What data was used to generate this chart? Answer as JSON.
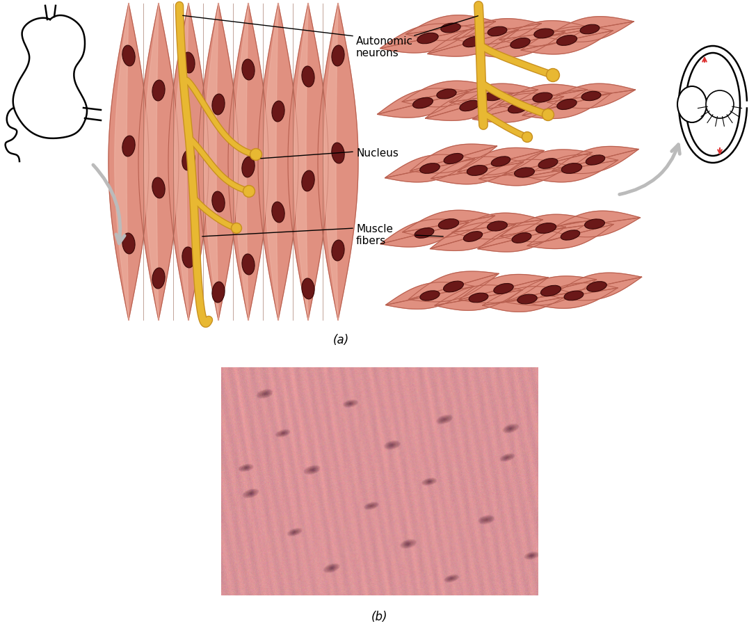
{
  "background_color": "#ffffff",
  "fig_width": 10.87,
  "fig_height": 9.23,
  "label_a": "(a)",
  "label_b": "(b)",
  "labels": {
    "autonomic_neurons": "Autonomic\nneurons",
    "nucleus": "Nucleus",
    "muscle_fibers": "Muscle\nfibers"
  },
  "muscle_fiber_color": "#e09080",
  "muscle_fiber_light": "#f0b8a8",
  "muscle_fiber_edge": "#b86050",
  "nucleus_color": "#6a1818",
  "nucleus_edge": "#3a0808",
  "nerve_color": "#e8b832",
  "nerve_edge": "#c89020",
  "arrow_color": "#bbbbbb",
  "label_fontsize": 11,
  "panel_label_fontsize": 12
}
